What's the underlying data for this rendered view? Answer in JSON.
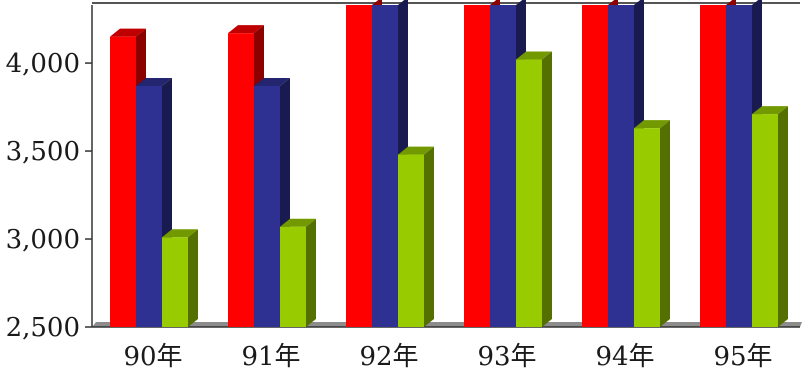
{
  "chart_data": {
    "type": "bar",
    "title": "",
    "xlabel": "",
    "ylabel": "",
    "categories": [
      "90年",
      "91年",
      "92年",
      "93年",
      "94年",
      "95年"
    ],
    "series": [
      {
        "color": "#ff0000",
        "values": [
          4150,
          4170,
          4400,
          4400,
          4400,
          4400
        ]
      },
      {
        "color": "#2e3192",
        "values": [
          3870,
          3870,
          4400,
          4400,
          4400,
          4400
        ]
      },
      {
        "color": "#99cc00",
        "values": [
          3010,
          3070,
          3480,
          4020,
          3630,
          3710
        ]
      }
    ],
    "ylim": [
      2500,
      4330
    ],
    "yticks": [
      2500,
      3000,
      3500,
      4000
    ],
    "ytick_labels": [
      "2,500",
      "3,000",
      "3,500",
      "4,000"
    ],
    "grid": false,
    "legend": "none",
    "style": "3d-column"
  }
}
